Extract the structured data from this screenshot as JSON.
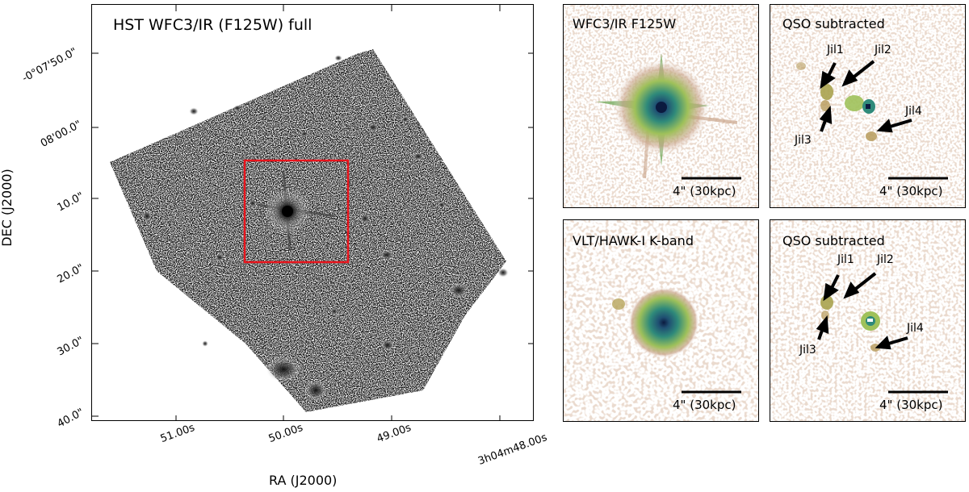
{
  "main_panel": {
    "title": "HST WFC3/IR (F125W) full",
    "x_axis_label": "RA (J2000)",
    "y_axis_label": "DEC (J2000)",
    "x_ticks": [
      "51.00s",
      "50.00s",
      "49.00s",
      "3h04m48.00s"
    ],
    "y_ticks": [
      "-0°07'50.0\"",
      "08'00.0\"",
      "10.0\"",
      "20.0\"",
      "30.0\"",
      "40.0\""
    ],
    "highlight_box_color": "#e8141c"
  },
  "panels": [
    {
      "title": "WFC3/IR F125W",
      "scale_label": "4\" (30kpc)"
    },
    {
      "title": "QSO subtracted",
      "scale_label": "4\" (30kpc)",
      "labels": {
        "jil1": "Jil1",
        "jil2": "Jil2",
        "jil3": "Jil3",
        "jil4": "Jil4"
      }
    },
    {
      "title": "VLT/HAWK-I K-band",
      "scale_label": "4\" (30kpc)"
    },
    {
      "title": "QSO subtracted",
      "scale_label": "4\" (30kpc)",
      "labels": {
        "jil1": "Jil1",
        "jil2": "Jil2",
        "jil3": "Jil3",
        "jil4": "Jil4"
      }
    }
  ],
  "colors": {
    "qso_core": "#0b1a3f",
    "qso_mid": "#2f8a7a",
    "qso_outer": "#9fc15a",
    "noise": "#c9a48a"
  }
}
